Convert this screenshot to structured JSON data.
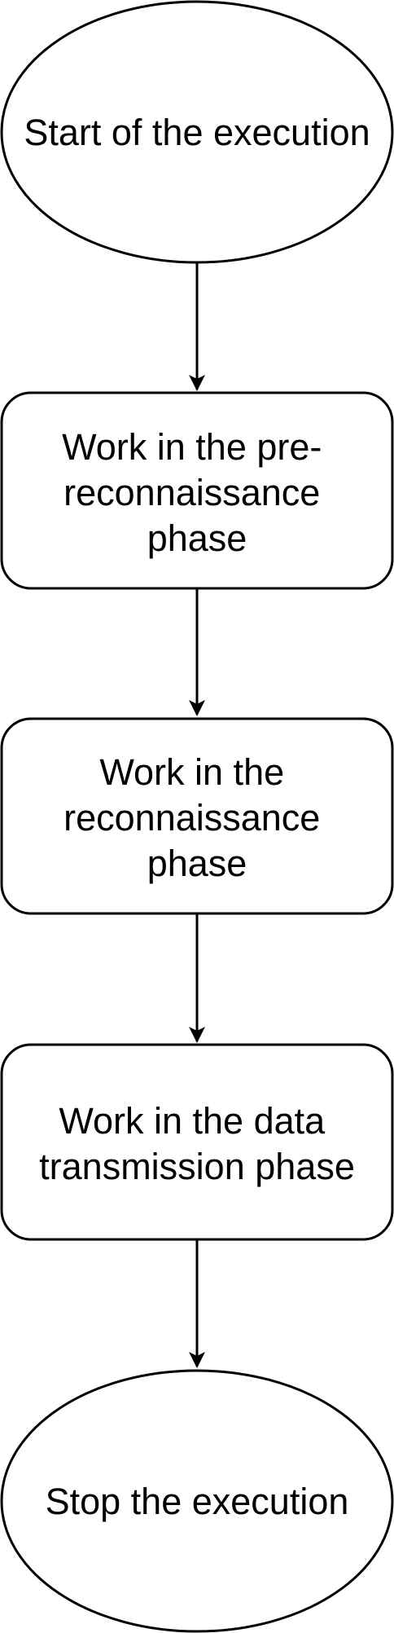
{
  "diagram": {
    "stroke_color": "#000000",
    "fill_color": "#ffffff",
    "nodes": [
      {
        "id": "start",
        "shape": "ellipse",
        "lines": [
          "Start of the execution"
        ]
      },
      {
        "id": "pre_recon",
        "shape": "rounded-rect",
        "lines": [
          "Work in the pre-",
          "reconnaissance",
          "phase"
        ]
      },
      {
        "id": "recon",
        "shape": "rounded-rect",
        "lines": [
          "Work in the",
          "reconnaissance",
          "phase"
        ]
      },
      {
        "id": "data_tx",
        "shape": "rounded-rect",
        "lines": [
          "Work in the data",
          "transmission phase"
        ]
      },
      {
        "id": "stop",
        "shape": "ellipse",
        "lines": [
          "Stop the execution"
        ]
      }
    ],
    "edges": [
      {
        "from": "start",
        "to": "pre_recon"
      },
      {
        "from": "pre_recon",
        "to": "recon"
      },
      {
        "from": "recon",
        "to": "data_tx"
      },
      {
        "from": "data_tx",
        "to": "stop"
      }
    ]
  }
}
